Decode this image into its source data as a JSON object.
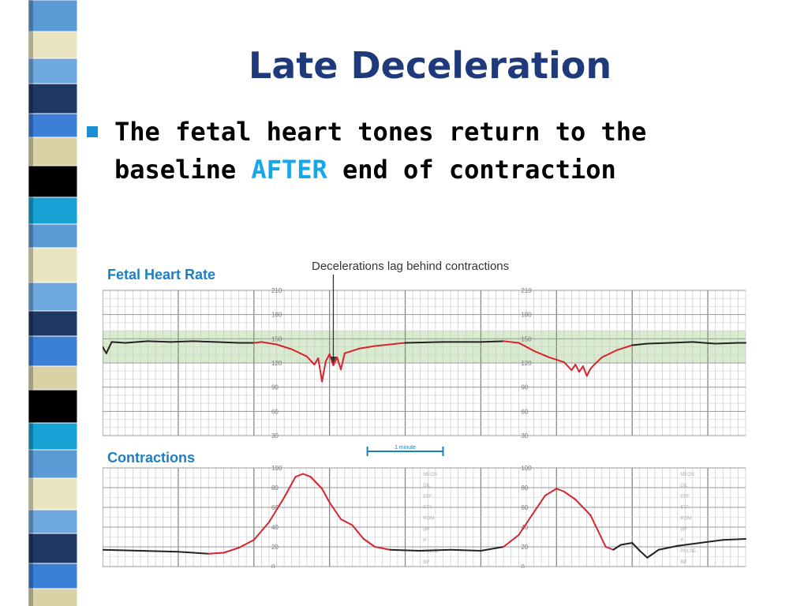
{
  "slide": {
    "title": "Late Deceleration",
    "bullet_before": "The fetal heart tones return to the baseline",
    "bullet_emphasis": "AFTER",
    "bullet_after": "end of contraction"
  },
  "colors": {
    "title": "#1f3a7a",
    "bullet_marker": "#1a8fd8",
    "emphasis": "#16a6ea",
    "trace_normal": "#222222",
    "trace_event": "#d9232e",
    "normal_band": "#cfe6c2",
    "section_label": "#1e7fc0",
    "stripe_palette": [
      "#5b9bd5",
      "#1f3864",
      "#000000",
      "#e8e5c0",
      "#3c7fd6",
      "#17a2d6",
      "#6fa8dc",
      "#d9d2a6"
    ]
  },
  "chart_data": [
    {
      "type": "line",
      "panel": "fetal-heart-rate",
      "title": "Fetal Heart Rate",
      "annotation": "Decelerations lag behind contractions",
      "x_unit": "minutes",
      "xlim": [
        0,
        8.5
      ],
      "ylim": [
        30,
        210
      ],
      "yticks": [
        210,
        180,
        150,
        120,
        90,
        60,
        30
      ],
      "ytick_label_positions_min": [
        2.2,
        5.5
      ],
      "normal_band": [
        120,
        160
      ],
      "grid": true,
      "series": [
        {
          "points": [
            [
              0,
              140
            ],
            [
              0.05,
              132
            ],
            [
              0.12,
              146
            ],
            [
              0.3,
              145
            ],
            [
              0.6,
              147
            ],
            [
              0.9,
              146
            ],
            [
              1.2,
              147
            ],
            [
              1.5,
              146
            ],
            [
              1.8,
              145
            ],
            [
              2.0,
              145
            ],
            [
              2.1,
              146
            ],
            [
              2.3,
              143
            ],
            [
              2.5,
              137
            ],
            [
              2.7,
              128
            ],
            [
              2.8,
              118
            ],
            [
              2.85,
              126
            ],
            [
              2.9,
              97
            ],
            [
              2.95,
              122
            ],
            [
              3.0,
              131
            ],
            [
              3.05,
              117
            ],
            [
              3.1,
              127
            ],
            [
              3.15,
              112
            ],
            [
              3.2,
              132
            ],
            [
              3.4,
              138
            ],
            [
              3.6,
              141
            ],
            [
              3.8,
              143
            ],
            [
              4.0,
              145
            ],
            [
              4.5,
              146
            ],
            [
              5.0,
              146
            ],
            [
              5.3,
              147
            ],
            [
              5.5,
              145
            ],
            [
              5.7,
              135
            ],
            [
              5.9,
              127
            ],
            [
              6.1,
              121
            ],
            [
              6.2,
              111
            ],
            [
              6.25,
              118
            ],
            [
              6.3,
              109
            ],
            [
              6.35,
              116
            ],
            [
              6.4,
              104
            ],
            [
              6.45,
              113
            ],
            [
              6.5,
              118
            ],
            [
              6.6,
              127
            ],
            [
              6.8,
              136
            ],
            [
              7.0,
              142
            ],
            [
              7.2,
              144
            ],
            [
              7.5,
              145
            ],
            [
              7.8,
              146
            ],
            [
              8.1,
              144
            ],
            [
              8.4,
              145
            ],
            [
              8.5,
              145
            ]
          ],
          "event_ranges": [
            [
              2.05,
              3.95
            ],
            [
              5.35,
              7.05
            ]
          ]
        }
      ]
    },
    {
      "type": "line",
      "panel": "contractions",
      "title": "Contractions",
      "scale_label": "1 minute",
      "scale_minutes": [
        3.5,
        4.5
      ],
      "x_unit": "minutes",
      "xlim": [
        0,
        8.5
      ],
      "ylim": [
        0,
        100
      ],
      "yticks": [
        100,
        80,
        60,
        40,
        20,
        0
      ],
      "ytick_label_positions_min": [
        2.2,
        5.5
      ],
      "side_labels": [
        "MEOS",
        "DIL",
        "EFF",
        "STA",
        "ROM",
        "BP",
        "P",
        "PULSE",
        "BP"
      ],
      "side_label_positions_min": [
        4.3,
        7.7
      ],
      "grid": true,
      "series": [
        {
          "points": [
            [
              0,
              17
            ],
            [
              0.5,
              16
            ],
            [
              1.0,
              15
            ],
            [
              1.4,
              13
            ],
            [
              1.6,
              14
            ],
            [
              1.8,
              19
            ],
            [
              2.0,
              27
            ],
            [
              2.2,
              45
            ],
            [
              2.4,
              70
            ],
            [
              2.55,
              91
            ],
            [
              2.65,
              94
            ],
            [
              2.75,
              91
            ],
            [
              2.9,
              79
            ],
            [
              3.0,
              65
            ],
            [
              3.15,
              48
            ],
            [
              3.3,
              42
            ],
            [
              3.45,
              28
            ],
            [
              3.6,
              20
            ],
            [
              3.8,
              17
            ],
            [
              4.2,
              16
            ],
            [
              4.6,
              17
            ],
            [
              5.0,
              16
            ],
            [
              5.3,
              20
            ],
            [
              5.5,
              32
            ],
            [
              5.7,
              55
            ],
            [
              5.85,
              72
            ],
            [
              6.0,
              79
            ],
            [
              6.1,
              76
            ],
            [
              6.25,
              68
            ],
            [
              6.45,
              52
            ],
            [
              6.55,
              36
            ],
            [
              6.65,
              20
            ],
            [
              6.75,
              17
            ],
            [
              6.85,
              22
            ],
            [
              7.0,
              24
            ],
            [
              7.1,
              16
            ],
            [
              7.2,
              9
            ],
            [
              7.35,
              17
            ],
            [
              7.6,
              21
            ],
            [
              7.9,
              24
            ],
            [
              8.2,
              27
            ],
            [
              8.5,
              28
            ]
          ],
          "event_ranges": [
            [
              1.5,
              3.7
            ],
            [
              5.2,
              6.72
            ]
          ]
        }
      ]
    }
  ]
}
